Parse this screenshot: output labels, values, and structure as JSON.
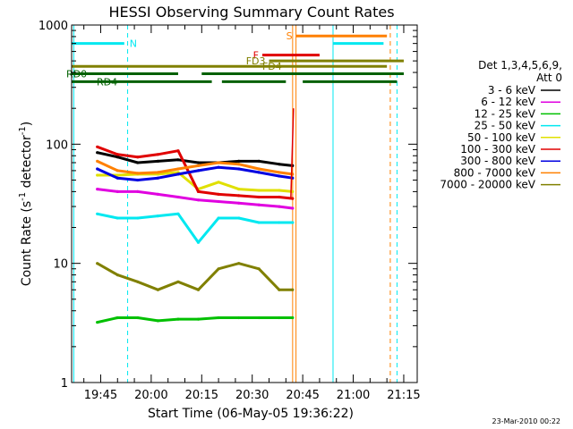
{
  "chart_data": {
    "type": "line",
    "title": "HESSI Observing Summary Count Rates",
    "xlabel": "Start Time (06-May-05 19:36:22)",
    "ylabel_main": "Count Rate (s",
    "ylabel_sup": "-1",
    "ylabel_tail": " detector",
    "ylabel_end": ")",
    "y_scale": "log",
    "ylim": [
      1,
      1000
    ],
    "xlim": [
      "19:36:22",
      "21:19:00"
    ],
    "x_ticks": [
      "19:45",
      "20:00",
      "20:15",
      "20:30",
      "20:45",
      "21:00",
      "21:15"
    ],
    "y_ticks": [
      "1",
      "10",
      "100",
      "1000"
    ],
    "legend_header": [
      "Det 1,3,4,5,6,9,",
      "Att 0"
    ],
    "legend_position": "right",
    "footer_date": "23-Mar-2010 00:22",
    "series": [
      {
        "name": "3 - 6 keV",
        "color": "#000000",
        "x": [
          "19:44",
          "19:50",
          "19:56",
          "20:02",
          "20:08",
          "20:14",
          "20:20",
          "20:26",
          "20:32",
          "20:38",
          "20:42"
        ],
        "values": [
          85,
          78,
          70,
          72,
          74,
          70,
          70,
          72,
          72,
          68,
          66
        ]
      },
      {
        "name": "6 - 12 keV",
        "color": "#e000e0",
        "x": [
          "19:44",
          "19:50",
          "19:56",
          "20:02",
          "20:08",
          "20:14",
          "20:20",
          "20:26",
          "20:32",
          "20:38",
          "20:42"
        ],
        "values": [
          42,
          40,
          40,
          38,
          36,
          34,
          33,
          32,
          31,
          30,
          29
        ]
      },
      {
        "name": "12 - 25 keV",
        "color": "#00c000",
        "x": [
          "19:44",
          "19:50",
          "19:56",
          "20:02",
          "20:08",
          "20:14",
          "20:20",
          "20:26",
          "20:32",
          "20:38",
          "20:42"
        ],
        "values": [
          3.2,
          3.5,
          3.5,
          3.3,
          3.4,
          3.4,
          3.5,
          3.5,
          3.5,
          3.5,
          3.5
        ]
      },
      {
        "name": "25 - 50 keV",
        "color": "#00e8f0",
        "x": [
          "19:44",
          "19:50",
          "19:56",
          "20:02",
          "20:08",
          "20:14",
          "20:20",
          "20:26",
          "20:32",
          "20:38",
          "20:42"
        ],
        "values": [
          26,
          24,
          24,
          25,
          26,
          15,
          24,
          24,
          22,
          22,
          22
        ]
      },
      {
        "name": "50 - 100 keV",
        "color": "#e0e000",
        "x": [
          "19:44",
          "19:50",
          "19:56",
          "20:02",
          "20:08",
          "20:14",
          "20:20",
          "20:26",
          "20:32",
          "20:38",
          "20:42"
        ],
        "values": [
          55,
          55,
          56,
          56,
          58,
          42,
          48,
          42,
          41,
          41,
          40
        ]
      },
      {
        "name": "100 - 300 keV",
        "color": "#e00000",
        "x": [
          "19:44",
          "19:50",
          "19:56",
          "20:02",
          "20:08",
          "20:14",
          "20:20",
          "20:26",
          "20:32",
          "20:38",
          "20:42"
        ],
        "values": [
          95,
          82,
          78,
          82,
          88,
          40,
          38,
          37,
          36,
          36,
          35
        ]
      },
      {
        "name": "300 - 800 keV",
        "color": "#0000e0",
        "x": [
          "19:44",
          "19:50",
          "19:56",
          "20:02",
          "20:08",
          "20:14",
          "20:20",
          "20:26",
          "20:32",
          "20:38",
          "20:42"
        ],
        "values": [
          62,
          52,
          50,
          52,
          56,
          60,
          64,
          62,
          58,
          54,
          52
        ]
      },
      {
        "name": "800 - 7000 keV",
        "color": "#ff8000",
        "x": [
          "19:44",
          "19:50",
          "19:56",
          "20:02",
          "20:08",
          "20:14",
          "20:20",
          "20:26",
          "20:32",
          "20:38",
          "20:42"
        ],
        "values": [
          72,
          60,
          57,
          58,
          62,
          66,
          70,
          68,
          62,
          58,
          56
        ]
      },
      {
        "name": "7000 - 20000 keV",
        "color": "#808000",
        "x": [
          "19:44",
          "19:50",
          "19:56",
          "20:02",
          "20:08",
          "20:14",
          "20:20",
          "20:26",
          "20:32",
          "20:38",
          "20:42"
        ],
        "values": [
          10,
          8,
          7,
          6,
          7,
          6,
          9,
          10,
          9,
          6,
          6
        ]
      }
    ],
    "vlines": [
      {
        "t": "19:37",
        "color": "#00e8f0",
        "style": "solid"
      },
      {
        "t": "19:53",
        "color": "#00e8f0",
        "style": "dashed"
      },
      {
        "t": "20:42",
        "color": "#ff8000",
        "style": "solid"
      },
      {
        "t": "20:43",
        "color": "#ff8000",
        "style": "solid"
      },
      {
        "t": "20:54",
        "color": "#00e8f0",
        "style": "solid"
      },
      {
        "t": "21:11",
        "color": "#ff8000",
        "style": "dashed"
      },
      {
        "t": "21:13",
        "color": "#00e8f0",
        "style": "dashed"
      }
    ],
    "flag_bars": [
      {
        "label": "N",
        "color": "#00e8f0",
        "segments": [
          [
            "19:36",
            "19:52"
          ],
          [
            "20:54",
            "21:09"
          ]
        ],
        "y": 700
      },
      {
        "label": "S",
        "color": "#ff8000",
        "segments": [
          [
            "20:43",
            "21:10"
          ]
        ],
        "y": 810
      },
      {
        "label": "F",
        "color": "#e00000",
        "segments": [
          [
            "20:33",
            "20:50"
          ]
        ],
        "y": 560
      },
      {
        "label": "FD3",
        "color": "#808000",
        "segments": [
          [
            "20:35",
            "21:15"
          ]
        ],
        "y": 500
      },
      {
        "label": "FD4",
        "color": "#808000",
        "segments": [
          [
            "19:36",
            "21:10"
          ]
        ],
        "y": 450
      },
      {
        "label": "RD0",
        "color": "#006000",
        "segments": [
          [
            "19:36",
            "20:08"
          ],
          [
            "20:15",
            "21:15"
          ]
        ],
        "y": 390
      },
      {
        "label": "RD4",
        "color": "#006000",
        "segments": [
          [
            "19:36",
            "20:18"
          ],
          [
            "20:21",
            "20:40"
          ],
          [
            "20:45",
            "21:13"
          ]
        ],
        "y": 335
      }
    ],
    "gridlines": false
  }
}
